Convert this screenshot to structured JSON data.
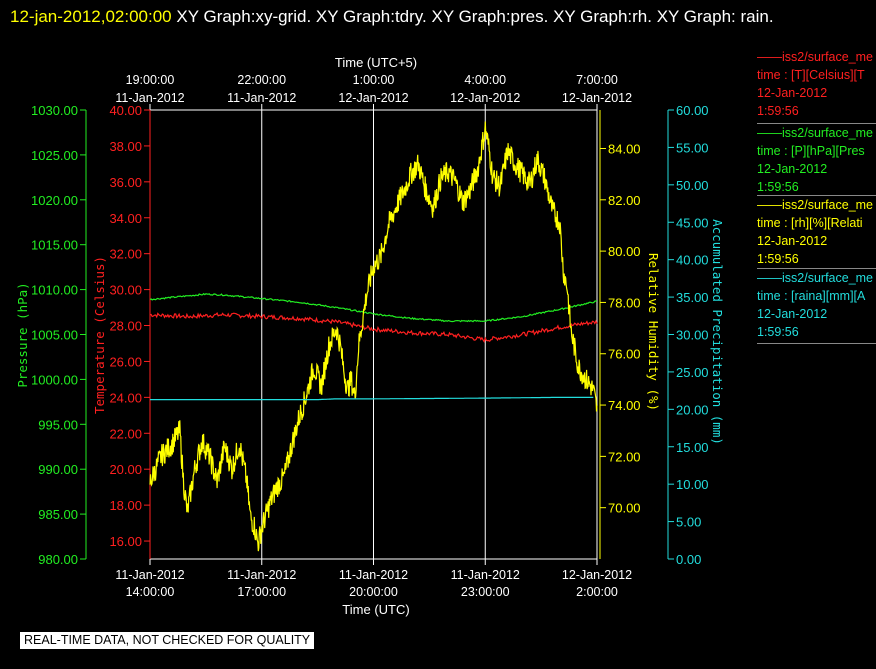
{
  "header": {
    "timestamp": "12-jan-2012,02:00:00",
    "titles": "XY Graph:xy-grid.  XY Graph:tdry.  XY Graph:pres.  XY Graph:rh.  XY Graph: rain."
  },
  "warning": "REAL-TIME DATA, NOT CHECKED FOR QUALITY",
  "legend": [
    {
      "line1": "——iss2/surface_me",
      "line2": "time : [T][Celsius][T",
      "line3": "12-Jan-2012",
      "line4": "1:59:56",
      "color": "#ff2020"
    },
    {
      "line1": "——iss2/surface_me",
      "line2": "time : [P][hPa][Pres",
      "line3": "12-Jan-2012",
      "line4": "1:59:56",
      "color": "#22ee22"
    },
    {
      "line1": "——iss2/surface_me",
      "line2": "time : [rh][%][Relati",
      "line3": "12-Jan-2012",
      "line4": "1:59:56",
      "color": "#ffff00"
    },
    {
      "line1": "——iss2/surface_me",
      "line2": "time : [raina][mm][A",
      "line3": "12-Jan-2012",
      "line4": "1:59:56",
      "color": "#22dddd"
    }
  ],
  "chart_data": {
    "type": "line",
    "x_axis_bottom": {
      "label": "Time (UTC)",
      "range_hours": [
        0,
        12
      ],
      "ticks": [
        {
          "h": 0,
          "date": "11-Jan-2012",
          "time": "14:00:00"
        },
        {
          "h": 3,
          "date": "11-Jan-2012",
          "time": "17:00:00"
        },
        {
          "h": 6,
          "date": "11-Jan-2012",
          "time": "20:00:00"
        },
        {
          "h": 9,
          "date": "11-Jan-2012",
          "time": "23:00:00"
        },
        {
          "h": 12,
          "date": "12-Jan-2012",
          "time": "2:00:00"
        }
      ]
    },
    "x_axis_top": {
      "label": "Time (UTC+5)",
      "ticks": [
        {
          "h": 0,
          "time": "19:00:00",
          "date": "11-Jan-2012"
        },
        {
          "h": 3,
          "time": "22:00:00",
          "date": "11-Jan-2012"
        },
        {
          "h": 6,
          "time": "1:00:00",
          "date": "12-Jan-2012"
        },
        {
          "h": 9,
          "time": "4:00:00",
          "date": "12-Jan-2012"
        },
        {
          "h": 12,
          "time": "7:00:00",
          "date": "12-Jan-2012"
        }
      ]
    },
    "axes": {
      "pressure": {
        "label": "Pressure (hPa)",
        "min": 980,
        "max": 1030,
        "step": 5,
        "decimals": 2,
        "color": "#22ee22"
      },
      "temperature": {
        "label": "Temperature (Celsius)",
        "min": 15,
        "max": 40,
        "step": 2,
        "start": 16,
        "decimals": 2,
        "color": "#ff2020"
      },
      "rh": {
        "label": "Relative Humidity (%)",
        "min": 68,
        "max": 85.5,
        "step": 2,
        "start": 70,
        "decimals": 2,
        "color": "#ffff00"
      },
      "rain": {
        "label": "Accumulated Precipitation (mm)",
        "min": 0,
        "max": 60,
        "step": 5,
        "decimals": 2,
        "color": "#22dddd"
      }
    },
    "series": [
      {
        "name": "Temperature (Celsius)",
        "axis": "temperature",
        "color": "#ff2020",
        "x": [
          0,
          1,
          2,
          3,
          4,
          5,
          6,
          7,
          8,
          9,
          10,
          11,
          11.6,
          12
        ],
        "y": [
          28.6,
          28.5,
          28.6,
          28.5,
          28.4,
          28.2,
          27.8,
          27.6,
          27.5,
          27.2,
          27.5,
          27.9,
          28.1,
          28.2
        ]
      },
      {
        "name": "Pressure (hPa)",
        "axis": "pressure",
        "color": "#22ee22",
        "x": [
          0,
          1,
          1.5,
          2,
          3,
          4,
          5,
          6,
          7,
          8,
          9,
          10,
          11,
          12
        ],
        "y": [
          1008.9,
          1009.3,
          1009.5,
          1009.4,
          1009.0,
          1008.6,
          1008.0,
          1007.3,
          1006.8,
          1006.5,
          1006.5,
          1007.0,
          1007.8,
          1008.7
        ]
      },
      {
        "name": "Relative Humidity (%)",
        "axis": "rh",
        "color": "#ffff00",
        "x": [
          0,
          0.3,
          0.6,
          0.8,
          0.9,
          1.0,
          1.2,
          1.4,
          1.6,
          1.8,
          2.0,
          2.2,
          2.4,
          2.6,
          2.7,
          2.8,
          2.9,
          3.0,
          3.2,
          3.4,
          3.6,
          3.8,
          4.0,
          4.2,
          4.4,
          4.6,
          4.8,
          5.0,
          5.1,
          5.2,
          5.3,
          5.4,
          5.5,
          5.6,
          5.8,
          6.0,
          6.2,
          6.4,
          6.6,
          6.8,
          7.0,
          7.2,
          7.4,
          7.6,
          7.8,
          8.0,
          8.2,
          8.4,
          8.6,
          8.8,
          9.0,
          9.1,
          9.2,
          9.4,
          9.6,
          9.8,
          10.0,
          10.2,
          10.4,
          10.6,
          10.8,
          11.0,
          11.1,
          11.2,
          11.3,
          11.5,
          11.7,
          11.9,
          12.0
        ],
        "y": [
          71.0,
          72.0,
          72.5,
          73.0,
          71.0,
          69.8,
          71.5,
          72.6,
          72.0,
          71.0,
          72.4,
          71.5,
          72.5,
          71.0,
          69.6,
          69.3,
          68.6,
          69.2,
          70.1,
          70.8,
          71.2,
          72.4,
          73.5,
          74.4,
          75.5,
          74.7,
          76.3,
          77.0,
          76.4,
          75.4,
          74.6,
          75.0,
          74.3,
          76.3,
          78.2,
          79.4,
          79.8,
          81.0,
          81.7,
          82.3,
          83.0,
          83.4,
          82.4,
          81.7,
          82.8,
          83.1,
          82.7,
          81.9,
          82.4,
          83.2,
          84.8,
          84.0,
          82.9,
          82.5,
          83.9,
          83.4,
          83.0,
          82.6,
          83.6,
          82.8,
          81.6,
          81.1,
          79.2,
          78.6,
          76.9,
          75.5,
          75.0,
          74.6,
          73.8
        ]
      },
      {
        "name": "Accumulated Precipitation (mm)",
        "axis": "rain",
        "color": "#22dddd",
        "x": [
          0,
          4.5,
          5,
          6,
          9,
          11,
          11.9
        ],
        "y": [
          21.3,
          21.3,
          21.4,
          21.4,
          21.5,
          21.6,
          21.6
        ]
      }
    ],
    "grid": true
  }
}
